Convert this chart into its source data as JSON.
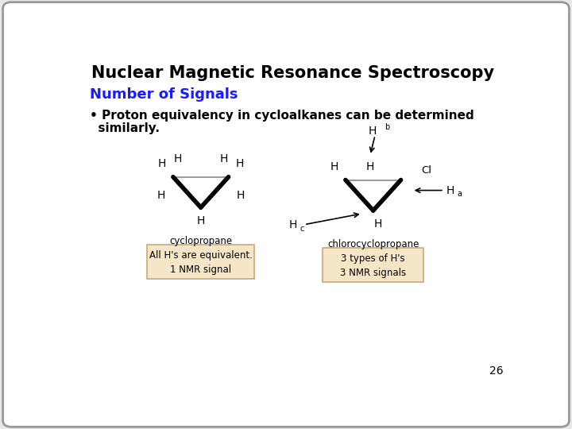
{
  "title": "Nuclear Magnetic Resonance Spectroscopy",
  "subtitle": "Number of Signals",
  "bullet_line1": "• Proton equivalency in cycloalkanes can be determined",
  "bullet_line2": "  similarly.",
  "cyclopropane_label": "cyclopropane",
  "chlorocyclopropane_label": "chlorocyclopropane",
  "box1_line1": "All H's are equivalent.",
  "box1_line2": "1 NMR signal",
  "box2_line1": "3 types of H's",
  "box2_line2": "3 NMR signals",
  "page_number": "26",
  "bg_color": "#e8e8e8",
  "slide_bg": "#ffffff",
  "title_color": "#000000",
  "subtitle_color": "#1a1aff",
  "body_color": "#000000",
  "box_fill": "#f5e6c8",
  "box_edge": "#c8a878",
  "border_color": "#999999"
}
